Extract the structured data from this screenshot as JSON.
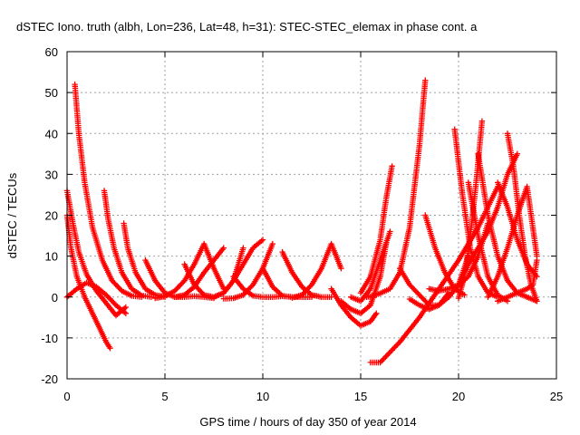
{
  "chart_data": {
    "type": "scatter",
    "title": "dSTEC Iono. truth (albh, Lon=236, Lat=48, h=31): STEC-STEC_elemax in phase cont. a",
    "xlabel": "GPS time / hours of day 350 of year 2014",
    "ylabel": "dSTEC  / TECUs",
    "xlim": [
      0,
      25
    ],
    "ylim": [
      -20,
      60
    ],
    "x_ticks": [
      "0",
      "5",
      "10",
      "15",
      "20",
      "25"
    ],
    "y_ticks": [
      "-20",
      "-10",
      "0",
      "10",
      "20",
      "30",
      "40",
      "50",
      "60"
    ],
    "grid": true,
    "legend": "none",
    "marker": "plus",
    "color": "#ff0000",
    "series": [
      {
        "x": [
          0.4,
          0.6,
          0.9,
          1.3,
          1.8,
          2.3,
          2.8,
          3.3,
          3.8
        ],
        "y": [
          52,
          40,
          28,
          17,
          9,
          4,
          1.5,
          0.3,
          0
        ]
      },
      {
        "x": [
          0.0,
          0.3,
          0.6,
          1.0,
          1.5,
          2.0,
          2.5,
          3.0
        ],
        "y": [
          26,
          18,
          11,
          5.5,
          1.5,
          -1.5,
          -4.5,
          -2.5
        ]
      },
      {
        "x": [
          0.0,
          0.2,
          0.5,
          0.9,
          1.3,
          1.7,
          2.0,
          2.2
        ],
        "y": [
          20,
          12,
          5,
          0,
          -4,
          -8,
          -11,
          -12.5
        ]
      },
      {
        "x": [
          0.0,
          0.5,
          1.0,
          1.5,
          2.0,
          2.5,
          3.0
        ],
        "y": [
          0,
          2,
          3.5,
          2.5,
          0.5,
          -2,
          -4
        ]
      },
      {
        "x": [
          1.9,
          2.1,
          2.4,
          2.8,
          3.3,
          3.8,
          4.3
        ],
        "y": [
          26,
          19,
          12,
          6,
          2,
          0.4,
          0
        ]
      },
      {
        "x": [
          2.9,
          3.1,
          3.5,
          4.0,
          4.5,
          5.0
        ],
        "y": [
          18,
          12,
          6,
          2,
          0.5,
          0
        ]
      },
      {
        "x": [
          4.0,
          4.5,
          5.0,
          5.5,
          6.0,
          6.5,
          7.0,
          7.5
        ],
        "y": [
          9,
          4,
          1,
          0,
          0,
          0.2,
          0,
          -0.3
        ]
      },
      {
        "x": [
          4.5,
          5.0,
          5.5,
          6.0,
          6.5,
          7.0,
          7.5,
          8.0
        ],
        "y": [
          -0.3,
          0.2,
          1.5,
          4,
          8,
          13,
          7,
          2
        ]
      },
      {
        "x": [
          5.5,
          6.0,
          6.5,
          7.0,
          7.5,
          8.0
        ],
        "y": [
          0,
          0.5,
          2.5,
          6,
          9,
          12
        ]
      },
      {
        "x": [
          6.0,
          6.5,
          7.0,
          7.5,
          8.0,
          8.5,
          9.0
        ],
        "y": [
          8,
          3,
          0.5,
          0,
          1,
          4,
          12
        ]
      },
      {
        "x": [
          7.5,
          8.0,
          8.5,
          9.0,
          9.5,
          10.0
        ],
        "y": [
          0,
          1,
          4,
          8,
          12,
          14
        ]
      },
      {
        "x": [
          8.0,
          8.5,
          9.0,
          9.5,
          10.0,
          10.5
        ],
        "y": [
          -0.4,
          -0.3,
          0.5,
          3,
          7,
          13
        ]
      },
      {
        "x": [
          8.5,
          9.0,
          9.5,
          10.0,
          10.5,
          11.0,
          11.5
        ],
        "y": [
          5,
          2,
          0.3,
          0,
          0,
          0.2,
          0
        ]
      },
      {
        "x": [
          10.0,
          10.5,
          11.0,
          11.5,
          12.0,
          12.5
        ],
        "y": [
          7,
          2.5,
          0.3,
          0,
          0,
          0
        ]
      },
      {
        "x": [
          11.0,
          11.5,
          12.0,
          12.5,
          13.0,
          13.5
        ],
        "y": [
          11,
          6,
          2.5,
          0.5,
          0,
          0
        ]
      },
      {
        "x": [
          11.5,
          12.0,
          12.5,
          13.0,
          13.5,
          14.0
        ],
        "y": [
          -0.2,
          0.5,
          3,
          7,
          13,
          7
        ]
      },
      {
        "x": [
          13.5,
          14.0,
          14.5,
          15.0,
          15.5,
          15.8
        ],
        "y": [
          2,
          -2,
          -5,
          -7,
          -6,
          -4
        ]
      },
      {
        "x": [
          14.0,
          14.5,
          15.0,
          15.5,
          16.0,
          16.3
        ],
        "y": [
          -1,
          -3,
          -4,
          -2,
          5,
          13
        ]
      },
      {
        "x": [
          14.5,
          15.0,
          15.5,
          16.0,
          16.5
        ],
        "y": [
          0,
          -1,
          2,
          9,
          16
        ]
      },
      {
        "x": [
          15.0,
          15.5,
          16.0,
          16.3,
          16.6
        ],
        "y": [
          1,
          5,
          14,
          24,
          32
        ]
      },
      {
        "x": [
          15.3,
          15.8,
          16.5,
          17.0,
          17.5,
          18.0,
          18.3
        ],
        "y": [
          0,
          0.5,
          2,
          6,
          17,
          37,
          53
        ]
      },
      {
        "x": [
          15.5,
          16.0,
          17.0,
          18.0,
          19.0,
          20.0,
          21.0,
          22.0
        ],
        "y": [
          -16,
          -16,
          -11,
          -5,
          2,
          9,
          17,
          27
        ]
      },
      {
        "x": [
          17.0,
          17.5,
          18.0,
          18.5,
          19.0,
          19.5
        ],
        "y": [
          7,
          3,
          0.5,
          -2,
          -2,
          1
        ]
      },
      {
        "x": [
          17.5,
          18.0,
          18.5,
          19.0,
          19.5,
          20.0,
          20.5
        ],
        "y": [
          -0.5,
          -2,
          -3,
          -2,
          0,
          3,
          10
        ]
      },
      {
        "x": [
          18.3,
          18.8,
          19.3,
          19.8,
          20.3
        ],
        "y": [
          20,
          12,
          6,
          2,
          0.5
        ]
      },
      {
        "x": [
          18.5,
          19.0,
          19.5,
          20.0,
          20.5,
          21.0,
          21.5
        ],
        "y": [
          2,
          1.5,
          2,
          3,
          5,
          10,
          18
        ]
      },
      {
        "x": [
          19.8,
          20.2,
          20.6,
          21.0,
          21.5,
          22.0
        ],
        "y": [
          41,
          25,
          12,
          5,
          1,
          0
        ]
      },
      {
        "x": [
          20.0,
          20.3,
          20.6,
          20.9,
          21.2
        ],
        "y": [
          -0.3,
          5,
          15,
          28,
          43
        ]
      },
      {
        "x": [
          19.5,
          20.0,
          20.5,
          21.0,
          21.5,
          22.0,
          22.5,
          23.0
        ],
        "y": [
          0,
          3,
          8,
          12,
          16,
          22,
          30,
          35
        ]
      },
      {
        "x": [
          20.5,
          21.0,
          21.5,
          22.0,
          22.5
        ],
        "y": [
          28,
          15,
          5,
          0.5,
          -1
        ]
      },
      {
        "x": [
          21.0,
          21.5,
          22.0,
          22.5,
          23.0,
          23.5,
          24.0
        ],
        "y": [
          35,
          20,
          10,
          4,
          1,
          0,
          -1
        ]
      },
      {
        "x": [
          22.0,
          22.5,
          23.0,
          23.5,
          24.0
        ],
        "y": [
          28,
          22,
          14,
          8,
          5
        ]
      },
      {
        "x": [
          22.5,
          22.8,
          23.1,
          23.4,
          23.7,
          24.0
        ],
        "y": [
          40,
          32,
          20,
          10,
          3,
          -1
        ]
      },
      {
        "x": [
          21.5,
          22.0,
          22.5,
          23.0,
          23.5,
          24.0
        ],
        "y": [
          0,
          5,
          12,
          20,
          27,
          10
        ]
      },
      {
        "x": [
          22.0,
          22.5,
          23.0,
          23.5,
          23.8,
          24.0
        ],
        "y": [
          -1,
          0,
          1,
          2,
          3,
          9
        ]
      }
    ]
  }
}
